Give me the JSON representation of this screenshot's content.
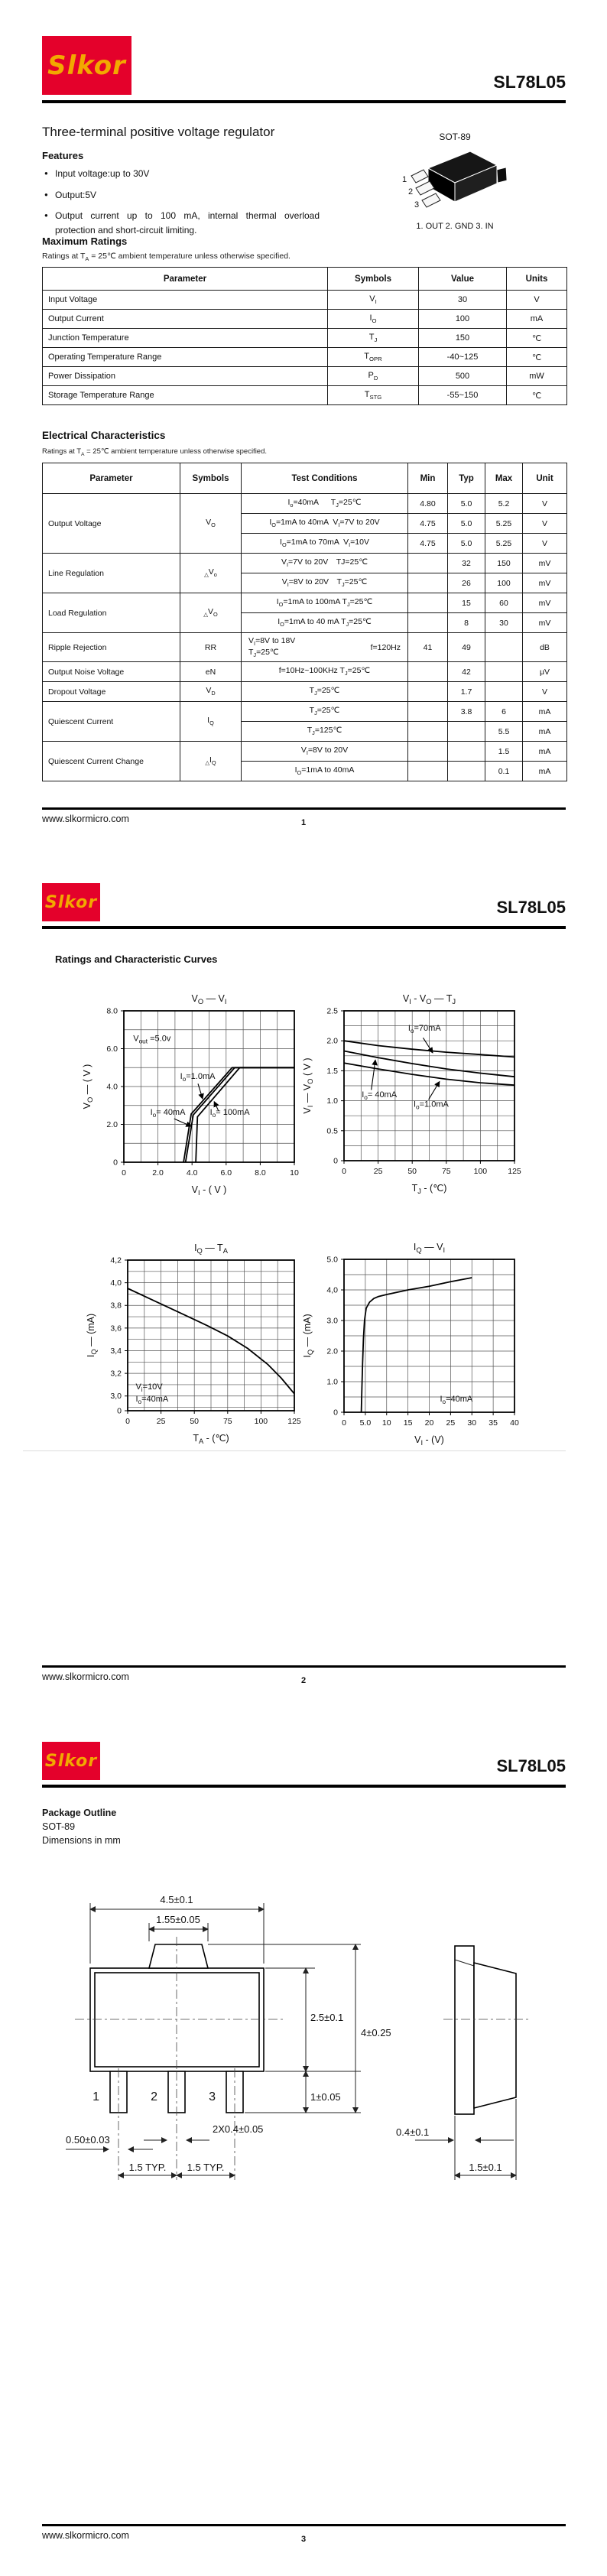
{
  "brand": {
    "logo_text": "Slkor",
    "logo_bg": "#e4012b",
    "logo_fg": "#f2a900",
    "part_number": "SL78L05"
  },
  "footer": {
    "website": "www.slkormicro.com",
    "page_numbers": [
      "1",
      "2",
      "3"
    ]
  },
  "page1": {
    "title": "Three-terminal positive voltage regulator",
    "features": {
      "heading": "Features",
      "items": [
        "Input voltage:up to 30V",
        "Output:5V",
        "Output current up to 100 mA, internal thermal overload protection and short-circuit limiting."
      ]
    },
    "package": {
      "label": "SOT-89",
      "pin_numbers": [
        "1",
        "2",
        "3"
      ],
      "pins_caption": "1. OUT 2. GND 3. IN"
    },
    "max_ratings": {
      "heading": "Maximum Ratings",
      "note": "Ratings at T_{A} = 25℃  ambient temperature unless otherwise specified.",
      "headers": [
        "Parameter",
        "Symbols",
        "Value",
        "Units"
      ],
      "rows": [
        [
          "Input Voltage",
          "V_{I}",
          "30",
          "V"
        ],
        [
          "Output Current",
          "I_{O}",
          "100",
          "mA"
        ],
        [
          "Junction Temperature",
          "T_{J}",
          "150",
          "℃"
        ],
        [
          "Operating Temperature Range",
          "T_{OPR}",
          "-40~125",
          "℃"
        ],
        [
          "Power Dissipation",
          "P_{D}",
          "500",
          "mW"
        ],
        [
          "Storage Temperature Range",
          "T_{STG}",
          "-55~150",
          "℃"
        ]
      ]
    },
    "electrical": {
      "heading": "Electrical Characteristics",
      "note": "Ratings at T_{A} = 25℃ ambient temperature unless otherwise specified.",
      "headers": [
        "Parameter",
        "Symbols",
        "Test Conditions",
        "Min",
        "Typ",
        "Max",
        "Unit"
      ],
      "groups": [
        {
          "param": "Output Voltage",
          "sym": "V_{O}",
          "rows": [
            {
              "cond": "I_{o}=40mA  T_{J}=25℃",
              "min": "4.80",
              "typ": "5.0",
              "max": "5.2",
              "unit": "V"
            },
            {
              "cond": "I_{O}=1mA to 40mA V_{I}=7V to 20V",
              "min": "4.75",
              "typ": "5.0",
              "max": "5.25",
              "unit": "V"
            },
            {
              "cond": "I_{O}=1mA to 70mA V_{I}=10V",
              "min": "4.75",
              "typ": "5.0",
              "max": "5.25",
              "unit": "V"
            }
          ]
        },
        {
          "param": "Line Regulation",
          "sym": "_{△}V_{o}",
          "rows": [
            {
              "cond": "V_{I}=7V to 20V TJ=25℃",
              "min": "",
              "typ": "32",
              "max": "150",
              "unit": "mV"
            },
            {
              "cond": "V_{I}=8V to 20V T_{J}=25℃",
              "min": "",
              "typ": "26",
              "max": "100",
              "unit": "mV"
            }
          ]
        },
        {
          "param": "Load Regulation",
          "sym": "_{△}V_{O}",
          "rows": [
            {
              "cond": "I_{O}=1mA to 100mA T_{J}=25℃",
              "min": "",
              "typ": "15",
              "max": "60",
              "unit": "mV"
            },
            {
              "cond": "I_{O}=1mA to 40 mA T_{J}=25℃",
              "min": "",
              "typ": "8",
              "max": "30",
              "unit": "mV"
            }
          ]
        },
        {
          "param": "Ripple Rejection",
          "sym": "RR",
          "rows": [
            {
              "cond": "V_{I}=8V to 18V\nT_{J}=25℃",
              "cond_right": "f=120Hz",
              "min": "41",
              "typ": "49",
              "max": "",
              "unit": "dB"
            }
          ]
        },
        {
          "param": "Output Noise Voltage",
          "sym": "eN",
          "rows": [
            {
              "cond": "f=10Hz~100KHz T_{J}=25℃",
              "min": "",
              "typ": "42",
              "max": "",
              "unit": "μV"
            }
          ]
        },
        {
          "param": "Dropout Voltage",
          "sym": "V_{D}",
          "rows": [
            {
              "cond": "T_{J}=25℃",
              "min": "",
              "typ": "1.7",
              "max": "",
              "unit": "V"
            }
          ]
        },
        {
          "param": "Quiescent Current",
          "sym": "I_{Q}",
          "rows": [
            {
              "cond": "T_{J}=25℃",
              "min": "",
              "typ": "3.8",
              "max": "6",
              "unit": "mA"
            },
            {
              "cond": "T_{J}=125℃",
              "min": "",
              "typ": "",
              "max": "5.5",
              "unit": "mA"
            }
          ]
        },
        {
          "param": "Quiescent Current Change",
          "sym": "_{△}I_{Q}",
          "rows": [
            {
              "cond": "V_{I}=8V to 20V",
              "min": "",
              "typ": "",
              "max": "1.5",
              "unit": "mA"
            },
            {
              "cond": "I_{O}=1mA to 40mA",
              "min": "",
              "typ": "",
              "max": "0.1",
              "unit": "mA"
            }
          ]
        }
      ]
    }
  },
  "page2": {
    "heading": "Ratings and Characteristic Curves",
    "chart_data": [
      {
        "type": "line",
        "title": "V_{O} — V_{I}",
        "xlabel": "V_{I} - ( V )",
        "ylabel": "V_{O} — ( V )",
        "xlim": [
          0,
          10
        ],
        "ylim": [
          0,
          8
        ],
        "minor_x": 1,
        "minor_y": 1,
        "xticks": [
          {
            "v": 0,
            "l": "0"
          },
          {
            "v": 2,
            "l": "2.0"
          },
          {
            "v": 4,
            "l": "4.0"
          },
          {
            "v": 6,
            "l": "6.0"
          },
          {
            "v": 8,
            "l": "8.0"
          },
          {
            "v": 10,
            "l": "10"
          }
        ],
        "yticks": [
          {
            "v": 0,
            "l": "0"
          },
          {
            "v": 2,
            "l": "2.0"
          },
          {
            "v": 4,
            "l": "4.0"
          },
          {
            "v": 6,
            "l": "6.0"
          },
          {
            "v": 8,
            "l": "8.0"
          }
        ],
        "series": [
          {
            "name": "Io=1.0mA",
            "points": [
              [
                3.5,
                0
              ],
              [
                3.95,
                2.55
              ],
              [
                6.35,
                5
              ],
              [
                10,
                5
              ]
            ]
          },
          {
            "name": "Io=40mA",
            "points": [
              [
                3.62,
                0
              ],
              [
                4.07,
                2.5
              ],
              [
                6.5,
                5
              ],
              [
                10,
                5
              ]
            ]
          },
          {
            "name": "Io=100mA",
            "points": [
              [
                4.22,
                0
              ],
              [
                4.32,
                2.4
              ],
              [
                6.8,
                5
              ],
              [
                10,
                5
              ]
            ]
          }
        ],
        "annotations": [
          {
            "text": "V_{out} =5.0v",
            "x": 0.55,
            "y": 6.4
          },
          {
            "text": "I_{o}=1.0mA",
            "x": 3.3,
            "y": 4.4
          },
          {
            "text": "I_{o}= 40mA",
            "x": 1.55,
            "y": 2.5
          },
          {
            "text": "I_{o}= 100mA",
            "x": 5.05,
            "y": 2.5
          }
        ],
        "arrows": [
          {
            "x1": 4.35,
            "y1": 4.15,
            "x2": 4.62,
            "y2": 3.35
          },
          {
            "x1": 2.95,
            "y1": 2.3,
            "x2": 3.95,
            "y2": 1.9
          },
          {
            "x1": 5.55,
            "y1": 2.72,
            "x2": 5.3,
            "y2": 3.2
          }
        ]
      },
      {
        "type": "line",
        "title": "V_{I} - V_{O} — T_{J}",
        "xlabel": "T_{J} - (℃)",
        "ylabel": "V_{I} — V_{O} ( V )",
        "xlim": [
          0,
          125
        ],
        "ylim": [
          0,
          2.5
        ],
        "minor_x": 12.5,
        "minor_y": 0.25,
        "xticks": [
          {
            "v": 0,
            "l": "0"
          },
          {
            "v": 25,
            "l": "25"
          },
          {
            "v": 50,
            "l": "50"
          },
          {
            "v": 75,
            "l": "75"
          },
          {
            "v": 100,
            "l": "100"
          },
          {
            "v": 125,
            "l": "125"
          }
        ],
        "yticks": [
          {
            "v": 0,
            "l": "0"
          },
          {
            "v": 0.5,
            "l": "0.5"
          },
          {
            "v": 1,
            "l": "1.0"
          },
          {
            "v": 1.5,
            "l": "1.5"
          },
          {
            "v": 2,
            "l": "2.0"
          },
          {
            "v": 2.5,
            "l": "2.5"
          }
        ],
        "series": [
          {
            "name": "Io=70mA",
            "points": [
              [
                0,
                2.0
              ],
              [
                25,
                1.92
              ],
              [
                50,
                1.86
              ],
              [
                75,
                1.81
              ],
              [
                100,
                1.77
              ],
              [
                125,
                1.73
              ]
            ]
          },
          {
            "name": "Io=40mA",
            "points": [
              [
                0,
                1.83
              ],
              [
                25,
                1.72
              ],
              [
                50,
                1.62
              ],
              [
                75,
                1.53
              ],
              [
                100,
                1.46
              ],
              [
                125,
                1.4
              ]
            ]
          },
          {
            "name": "Io=1.0mA",
            "points": [
              [
                0,
                1.63
              ],
              [
                25,
                1.53
              ],
              [
                50,
                1.44
              ],
              [
                75,
                1.36
              ],
              [
                100,
                1.3
              ],
              [
                125,
                1.26
              ]
            ]
          }
        ],
        "annotations": [
          {
            "text": "I_{o}=70mA",
            "x": 47,
            "y": 2.17
          },
          {
            "text": "I_{o}= 40mA",
            "x": 13,
            "y": 1.06
          },
          {
            "text": "I_{o}=1.0mA",
            "x": 51,
            "y": 0.9
          }
        ],
        "arrows": [
          {
            "x1": 58,
            "y1": 2.05,
            "x2": 65,
            "y2": 1.8
          },
          {
            "x1": 20,
            "y1": 1.18,
            "x2": 23,
            "y2": 1.68
          },
          {
            "x1": 62,
            "y1": 1.02,
            "x2": 70,
            "y2": 1.32
          }
        ]
      },
      {
        "type": "line",
        "title": "I_{Q} — T_{A}",
        "xlabel": "T_{A} - (℃)",
        "ylabel": "I_{Q} — (mA)",
        "xlim": [
          0,
          125
        ],
        "ylim": [
          2.87,
          4.2
        ],
        "minor_x": 12.5,
        "minor_y": 0.1,
        "xticks": [
          {
            "v": 0,
            "l": "0"
          },
          {
            "v": 25,
            "l": "25"
          },
          {
            "v": 50,
            "l": "50"
          },
          {
            "v": 75,
            "l": "75"
          },
          {
            "v": 100,
            "l": "100"
          },
          {
            "v": 125,
            "l": "125"
          }
        ],
        "yticks": [
          {
            "v": 2.87,
            "l": "0"
          },
          {
            "v": 3.0,
            "l": "3,0"
          },
          {
            "v": 3.2,
            "l": "3,2"
          },
          {
            "v": 3.4,
            "l": "3,4"
          },
          {
            "v": 3.6,
            "l": "3,6"
          },
          {
            "v": 3.8,
            "l": "3,8"
          },
          {
            "v": 4.0,
            "l": "4,0"
          },
          {
            "v": 4.2,
            "l": "4,2"
          }
        ],
        "series": [
          {
            "name": "Vi=10V Io=40mA",
            "points": [
              [
                0,
                3.95
              ],
              [
                20,
                3.84
              ],
              [
                40,
                3.73
              ],
              [
                60,
                3.62
              ],
              [
                75,
                3.53
              ],
              [
                90,
                3.42
              ],
              [
                105,
                3.28
              ],
              [
                115,
                3.16
              ],
              [
                125,
                3.02
              ]
            ]
          }
        ],
        "annotations": [
          {
            "text": "V_{i}=10V",
            "x": 6,
            "y": 3.06
          },
          {
            "text": "I_{o}=40mA",
            "x": 6,
            "y": 2.95
          }
        ],
        "arrows": []
      },
      {
        "type": "line",
        "title": "I_{Q} — V_{I}",
        "xlabel": "V_{I} - (V)",
        "ylabel": "I_{Q} — (mA)",
        "xlim": [
          0,
          40
        ],
        "ylim": [
          0,
          5
        ],
        "minor_x": 5,
        "minor_y": 0.5,
        "xticks": [
          {
            "v": 0,
            "l": "0"
          },
          {
            "v": 5,
            "l": "5.0"
          },
          {
            "v": 10,
            "l": "10"
          },
          {
            "v": 15,
            "l": "15"
          },
          {
            "v": 20,
            "l": "20"
          },
          {
            "v": 25,
            "l": "25"
          },
          {
            "v": 30,
            "l": "30"
          },
          {
            "v": 35,
            "l": "35"
          },
          {
            "v": 40,
            "l": "40"
          }
        ],
        "yticks": [
          {
            "v": 0,
            "l": "0"
          },
          {
            "v": 1,
            "l": "1.0"
          },
          {
            "v": 2,
            "l": "2.0"
          },
          {
            "v": 3,
            "l": "3.0"
          },
          {
            "v": 4,
            "l": "4,0"
          },
          {
            "v": 5,
            "l": "5.0"
          }
        ],
        "series": [
          {
            "name": "Io=40mA",
            "points": [
              [
                4.05,
                0
              ],
              [
                4.2,
                0.8
              ],
              [
                4.35,
                1.6
              ],
              [
                4.55,
                2.4
              ],
              [
                4.8,
                3.0
              ],
              [
                5.2,
                3.4
              ],
              [
                6,
                3.6
              ],
              [
                7,
                3.72
              ],
              [
                8,
                3.78
              ],
              [
                10,
                3.85
              ],
              [
                15,
                4.0
              ],
              [
                20,
                4.12
              ],
              [
                25,
                4.27
              ],
              [
                30,
                4.4
              ]
            ]
          }
        ],
        "annotations": [
          {
            "text": "I_{o}=40mA",
            "x": 22.5,
            "y": 0.35
          }
        ],
        "arrows": []
      }
    ]
  },
  "page3": {
    "heading": "Package Outline",
    "subheading": "SOT-89",
    "note": "Dimensions in mm",
    "dims": {
      "body_width": "4.5±0.1",
      "tab_width": "1.55±0.05",
      "body_height": "2.5±0.1",
      "total_height": "4±0.25",
      "lead_length": "1±0.05",
      "lead1_width": "0.50±0.03",
      "pitch1": "1.5 TYP.",
      "pitch2": "1.5 TYP.",
      "lead_width2": "2X0.4±0.05",
      "lead_thickness": "0.4±0.1",
      "side_width": "1.5±0.1",
      "pin_numbers": [
        "1",
        "2",
        "3"
      ]
    }
  }
}
